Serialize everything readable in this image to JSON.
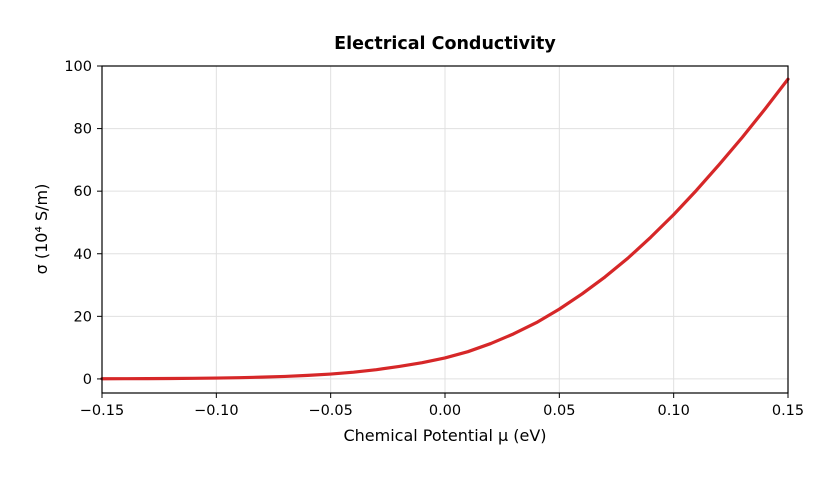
{
  "chart_data": {
    "type": "line",
    "title": "Electrical Conductivity",
    "xlabel": "Chemical Potential μ (eV)",
    "ylabel": "σ (10⁴ S/m)",
    "xlim": [
      -0.15,
      0.15
    ],
    "ylim": [
      -4.5,
      100
    ],
    "grid": true,
    "x_ticks": [
      {
        "value": -0.15,
        "label": "−0.15"
      },
      {
        "value": -0.1,
        "label": "−0.10"
      },
      {
        "value": -0.05,
        "label": "−0.05"
      },
      {
        "value": 0.0,
        "label": "0.00"
      },
      {
        "value": 0.05,
        "label": "0.05"
      },
      {
        "value": 0.1,
        "label": "0.10"
      },
      {
        "value": 0.15,
        "label": "0.15"
      }
    ],
    "y_ticks": [
      {
        "value": 0,
        "label": "0"
      },
      {
        "value": 20,
        "label": "20"
      },
      {
        "value": 40,
        "label": "40"
      },
      {
        "value": 60,
        "label": "60"
      },
      {
        "value": 80,
        "label": "80"
      },
      {
        "value": 100,
        "label": "100"
      }
    ],
    "series": [
      {
        "color": "#d62728",
        "x": [
          -0.15,
          -0.14,
          -0.13,
          -0.12,
          -0.11,
          -0.1,
          -0.09,
          -0.08,
          -0.07,
          -0.06,
          -0.05,
          -0.04,
          -0.03,
          -0.02,
          -0.01,
          0.0,
          0.01,
          0.02,
          0.03,
          0.04,
          0.05,
          0.06,
          0.07,
          0.08,
          0.09,
          0.1,
          0.11,
          0.12,
          0.13,
          0.14,
          0.15
        ],
        "y": [
          0.05,
          0.07,
          0.1,
          0.14,
          0.2,
          0.28,
          0.4,
          0.57,
          0.8,
          1.12,
          1.56,
          2.15,
          2.95,
          4.0,
          5.2,
          6.7,
          8.7,
          11.3,
          14.4,
          18.0,
          22.3,
          27.2,
          32.6,
          38.6,
          45.3,
          52.5,
          60.3,
          68.6,
          77.2,
          86.3,
          95.8
        ]
      }
    ]
  }
}
